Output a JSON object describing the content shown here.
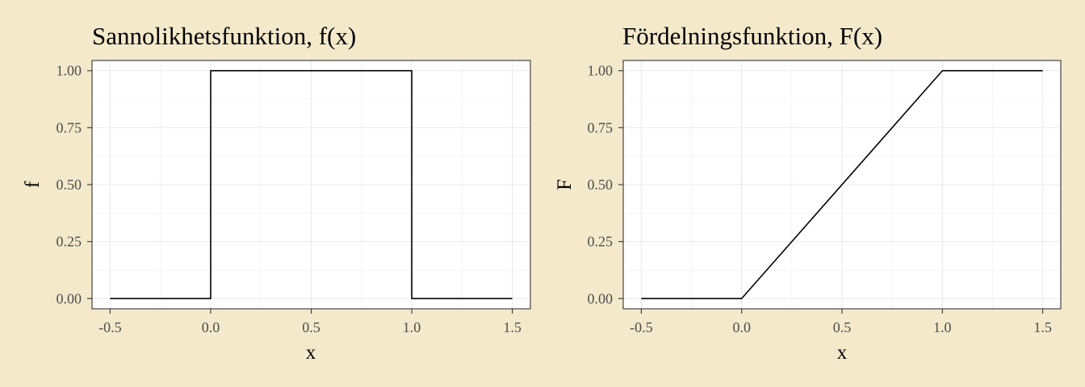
{
  "colors": {
    "background": "#f4e9cb",
    "panel": "#ffffff",
    "grid": "#ebebeb",
    "line": "#000000",
    "tick_text": "#4d4d4d"
  },
  "chart_data": [
    {
      "type": "line",
      "title": "Sannolikhetsfunktion, f(x)",
      "xlabel": "x",
      "ylabel": "f",
      "xlim": [
        -0.5,
        1.5
      ],
      "ylim": [
        0,
        1
      ],
      "x_ticks": [
        -0.5,
        0,
        0.5,
        1,
        1.5
      ],
      "x_tick_labels": [
        "-0.5",
        "0.0",
        "0.5",
        "1.0",
        "1.5"
      ],
      "y_ticks": [
        0,
        0.25,
        0.5,
        0.75,
        1
      ],
      "y_tick_labels": [
        "0.00",
        "0.25",
        "0.50",
        "0.75",
        "1.00"
      ],
      "grid": true,
      "series": [
        {
          "x": [
            -0.5,
            0,
            0,
            0,
            1,
            1,
            1,
            1.5
          ],
          "y": [
            0,
            0,
            0.5,
            1,
            1,
            0.5,
            0,
            0
          ]
        }
      ]
    },
    {
      "type": "line",
      "title": "Fördelningsfunktion, F(x)",
      "xlabel": "x",
      "ylabel": "F",
      "xlim": [
        -0.5,
        1.5
      ],
      "ylim": [
        0,
        1
      ],
      "x_ticks": [
        -0.5,
        0,
        0.5,
        1,
        1.5
      ],
      "x_tick_labels": [
        "-0.5",
        "0.0",
        "0.5",
        "1.0",
        "1.5"
      ],
      "y_ticks": [
        0,
        0.25,
        0.5,
        0.75,
        1
      ],
      "y_tick_labels": [
        "0.00",
        "0.25",
        "0.50",
        "0.75",
        "1.00"
      ],
      "grid": true,
      "series": [
        {
          "x": [
            -0.5,
            0,
            1,
            1.5
          ],
          "y": [
            0,
            0,
            1,
            1
          ]
        }
      ]
    }
  ]
}
